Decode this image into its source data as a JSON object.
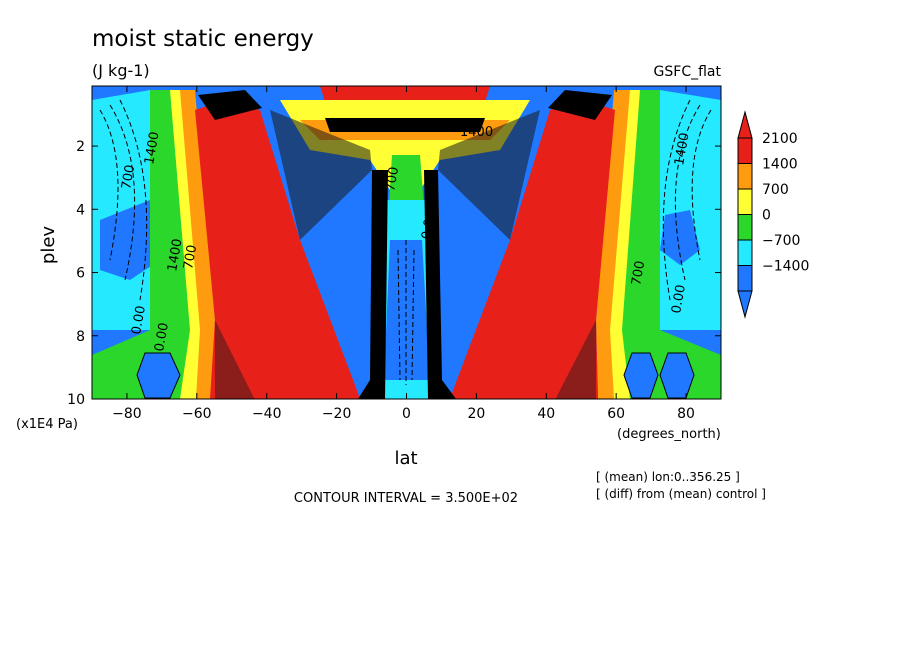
{
  "chart_data": {
    "type": "heatmap",
    "title": "moist static energy",
    "subtitle": "(J kg-1)",
    "model_label": "GSFC_flat",
    "xlabel": "lat",
    "xunits": "(degrees_north)",
    "ylabel": "plev",
    "yunits": "(x1E4 Pa)",
    "xlim": [
      -90,
      90
    ],
    "ylim": [
      10,
      0.1
    ],
    "x_ticks": [
      -80,
      -60,
      -40,
      -20,
      0,
      20,
      40,
      60,
      80
    ],
    "y_ticks": [
      2,
      4,
      6,
      8,
      10
    ],
    "contour_interval_text": "CONTOUR INTERVAL = 3.500E+02",
    "notes": [
      "[ (mean) lon:0..356.25 ]",
      "[ (diff) from (mean) control ]"
    ],
    "colorbar": {
      "levels": [
        2100,
        1400,
        700,
        0,
        -700,
        -1400
      ],
      "colors": [
        "#e8201a",
        "#ff9b0f",
        "#ffff33",
        "#2bd72b",
        "#25e9ff",
        "#1f78ff"
      ]
    },
    "contour_labels": [
      "1400",
      "700",
      "0.00",
      "1400",
      "700",
      "0.00",
      "1400",
      "700",
      "0.00",
      "1400",
      "700",
      "0.00"
    ]
  }
}
